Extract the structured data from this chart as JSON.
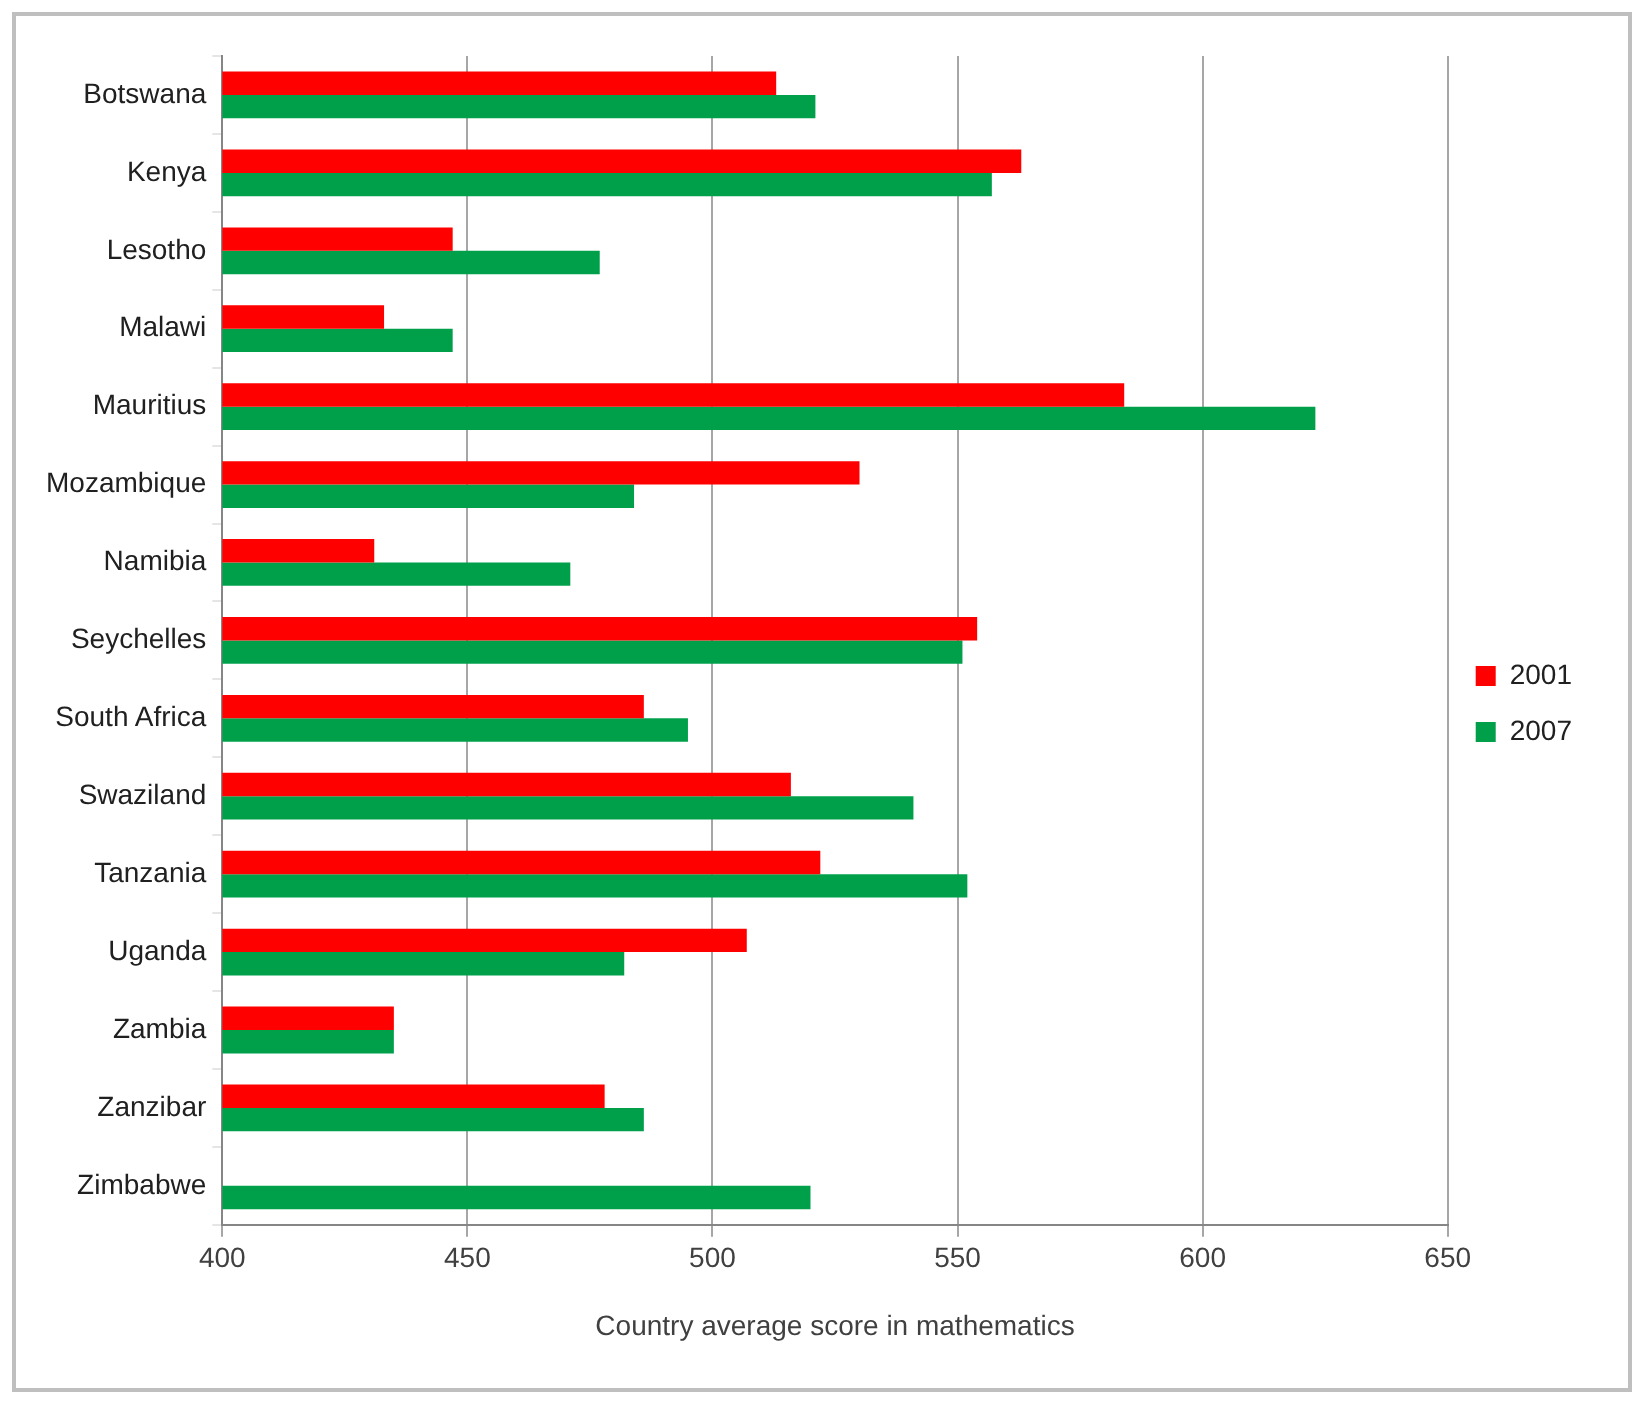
{
  "chart_data": {
    "type": "bar",
    "orientation": "horizontal",
    "xlabel": "Country average score in mathematics",
    "categories": [
      "Botswana",
      "Kenya",
      "Lesotho",
      "Malawi",
      "Mauritius",
      "Mozambique",
      "Namibia",
      "Seychelles",
      "South Africa",
      "Swaziland",
      "Tanzania",
      "Uganda",
      "Zambia",
      "Zanzibar",
      "Zimbabwe"
    ],
    "series": [
      {
        "name": "2001",
        "color": "#ff0000",
        "values": [
          513,
          563,
          447,
          433,
          584,
          530,
          431,
          554,
          486,
          516,
          522,
          507,
          435,
          478,
          null
        ]
      },
      {
        "name": "2007",
        "color": "#00a04a",
        "values": [
          521,
          557,
          477,
          447,
          623,
          484,
          471,
          551,
          495,
          541,
          552,
          482,
          435,
          486,
          520
        ]
      }
    ],
    "xlim": [
      400,
      650
    ],
    "xticks": [
      400,
      450,
      500,
      550,
      600,
      650
    ],
    "grid": "x",
    "legend": "right"
  }
}
